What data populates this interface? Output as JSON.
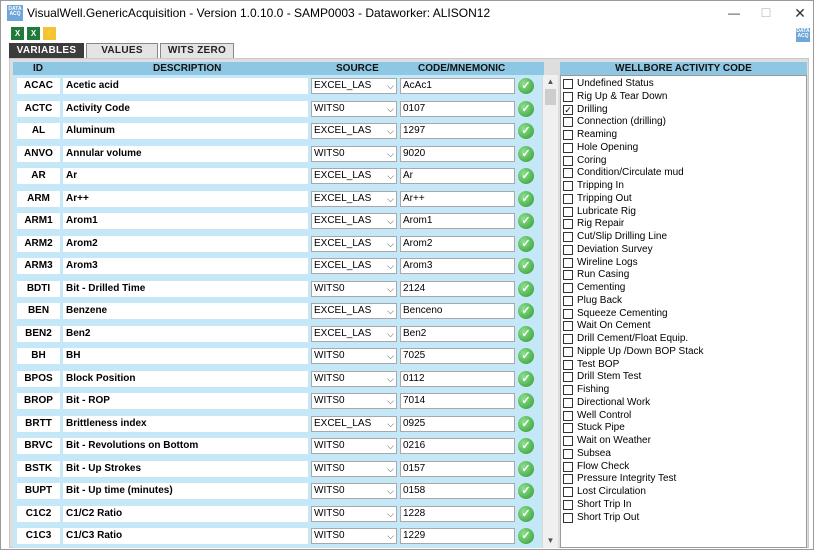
{
  "window": {
    "title": "VisualWell.GenericAcquisition - Version 1.0.10.0 - SAMP0003 - Dataworker: ALISON12",
    "minimize": "—",
    "maximize": "☐",
    "close": "✕"
  },
  "toolbar": {
    "icons": [
      "excel-export-icon",
      "excel-import-icon",
      "flash-icon"
    ]
  },
  "tabs": [
    {
      "label": "VARIABLES",
      "active": true
    },
    {
      "label": "VALUES",
      "active": false
    },
    {
      "label": "WITS ZERO",
      "active": false
    }
  ],
  "variables": {
    "headers": {
      "id": "ID",
      "description": "DESCRIPTION",
      "source": "SOURCE",
      "code": "CODE/MNEMONIC"
    },
    "rows": [
      {
        "id": "ACAC",
        "description": "Acetic acid",
        "source": "EXCEL_LAS",
        "code": "AcAc1"
      },
      {
        "id": "ACTC",
        "description": "Activity Code",
        "source": "WITS0",
        "code": "0107"
      },
      {
        "id": "AL",
        "description": "Aluminum",
        "source": "EXCEL_LAS",
        "code": "1297"
      },
      {
        "id": "ANVO",
        "description": "Annular volume",
        "source": "WITS0",
        "code": "9020"
      },
      {
        "id": "AR",
        "description": "Ar",
        "source": "EXCEL_LAS",
        "code": "Ar"
      },
      {
        "id": "ARM",
        "description": "Ar++",
        "source": "EXCEL_LAS",
        "code": "Ar++"
      },
      {
        "id": "ARM1",
        "description": "Arom1",
        "source": "EXCEL_LAS",
        "code": "Arom1"
      },
      {
        "id": "ARM2",
        "description": "Arom2",
        "source": "EXCEL_LAS",
        "code": "Arom2"
      },
      {
        "id": "ARM3",
        "description": "Arom3",
        "source": "EXCEL_LAS",
        "code": "Arom3"
      },
      {
        "id": "BDTI",
        "description": "Bit - Drilled Time",
        "source": "WITS0",
        "code": "2124"
      },
      {
        "id": "BEN",
        "description": "Benzene",
        "source": "EXCEL_LAS",
        "code": "Benceno"
      },
      {
        "id": "BEN2",
        "description": "Ben2",
        "source": "EXCEL_LAS",
        "code": "Ben2"
      },
      {
        "id": "BH",
        "description": "BH",
        "source": "WITS0",
        "code": "7025"
      },
      {
        "id": "BPOS",
        "description": "Block Position",
        "source": "WITS0",
        "code": "0112"
      },
      {
        "id": "BROP",
        "description": "Bit - ROP",
        "source": "WITS0",
        "code": "7014"
      },
      {
        "id": "BRTT",
        "description": "Brittleness index",
        "source": "EXCEL_LAS",
        "code": "0925"
      },
      {
        "id": "BRVC",
        "description": "Bit - Revolutions on Bottom",
        "source": "WITS0",
        "code": "0216"
      },
      {
        "id": "BSTK",
        "description": "Bit - Up Strokes",
        "source": "WITS0",
        "code": "0157"
      },
      {
        "id": "BUPT",
        "description": "Bit - Up time (minutes)",
        "source": "WITS0",
        "code": "0158"
      },
      {
        "id": "C1C2",
        "description": "C1/C2 Ratio",
        "source": "WITS0",
        "code": "1228"
      },
      {
        "id": "C1C3",
        "description": "C1/C3 Ratio",
        "source": "WITS0",
        "code": "1229"
      }
    ]
  },
  "wellbore": {
    "header": "WELLBORE ACTIVITY CODE",
    "items": [
      {
        "label": "Undefined Status",
        "checked": false
      },
      {
        "label": "Rig Up & Tear Down",
        "checked": false
      },
      {
        "label": "Drilling",
        "checked": true
      },
      {
        "label": "Connection (drilling)",
        "checked": false
      },
      {
        "label": "Reaming",
        "checked": false
      },
      {
        "label": "Hole Opening",
        "checked": false
      },
      {
        "label": "Coring",
        "checked": false
      },
      {
        "label": "Condition/Circulate mud",
        "checked": false
      },
      {
        "label": "Tripping In",
        "checked": false
      },
      {
        "label": "Tripping Out",
        "checked": false
      },
      {
        "label": "Lubricate Rig",
        "checked": false
      },
      {
        "label": "Rig Repair",
        "checked": false
      },
      {
        "label": "Cut/Slip Drilling Line",
        "checked": false
      },
      {
        "label": "Deviation Survey",
        "checked": false
      },
      {
        "label": "Wireline Logs",
        "checked": false
      },
      {
        "label": "Run Casing",
        "checked": false
      },
      {
        "label": "Cementing",
        "checked": false
      },
      {
        "label": "Plug Back",
        "checked": false
      },
      {
        "label": "Squeeze Cementing",
        "checked": false
      },
      {
        "label": "Wait On Cement",
        "checked": false
      },
      {
        "label": "Drill Cement/Float Equip.",
        "checked": false
      },
      {
        "label": "Nipple Up /Down BOP Stack",
        "checked": false
      },
      {
        "label": "Test BOP",
        "checked": false
      },
      {
        "label": "Drill Stem Test",
        "checked": false
      },
      {
        "label": "Fishing",
        "checked": false
      },
      {
        "label": "Directional Work",
        "checked": false
      },
      {
        "label": "Well Control",
        "checked": false
      },
      {
        "label": "Stuck Pipe",
        "checked": false
      },
      {
        "label": "Wait on Weather",
        "checked": false
      },
      {
        "label": "Subsea",
        "checked": false
      },
      {
        "label": "Flow Check",
        "checked": false
      },
      {
        "label": "Pressure Integrity Test",
        "checked": false
      },
      {
        "label": "Lost Circulation",
        "checked": false
      },
      {
        "label": "Short Trip In",
        "checked": false
      },
      {
        "label": "Short Trip Out",
        "checked": false
      }
    ]
  },
  "colors": {
    "header_blue": "#8dc7e4",
    "panel_blue": "#c5e8f8",
    "tab_active": "#3c3c3c",
    "ok_green": "#2f9a2f"
  }
}
